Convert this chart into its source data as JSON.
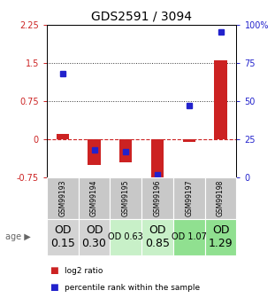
{
  "title": "GDS2591 / 3094",
  "samples": [
    "GSM99193",
    "GSM99194",
    "GSM99195",
    "GSM99196",
    "GSM99197",
    "GSM99198"
  ],
  "log2_ratio": [
    0.1,
    -0.5,
    -0.45,
    -0.85,
    -0.05,
    1.55
  ],
  "percentile_rank": [
    0.68,
    0.18,
    0.17,
    0.02,
    0.47,
    0.95
  ],
  "age_labels": [
    "OD\n0.15",
    "OD\n0.30",
    "OD 0.63",
    "OD\n0.85",
    "OD 1.07",
    "OD\n1.29"
  ],
  "age_bg_colors": [
    "#d3d3d3",
    "#d3d3d3",
    "#c8f0c8",
    "#c8f0c8",
    "#90e090",
    "#90e090"
  ],
  "age_font_sizes": [
    9,
    9,
    7,
    9,
    7,
    9
  ],
  "bar_color_red": "#cc2222",
  "bar_color_blue": "#2222cc",
  "left_yticks": [
    -0.75,
    0,
    0.75,
    1.5,
    2.25
  ],
  "right_yticks": [
    0,
    25,
    50,
    75,
    100
  ],
  "ylim_left": [
    -0.75,
    2.25
  ],
  "ylim_right": [
    0,
    100
  ],
  "hlines": [
    0.75,
    1.5
  ],
  "hline_zero_color": "#cc2222",
  "hline_dotted_color": "#333333",
  "tick_color_left": "#cc2222",
  "tick_color_right": "#2222cc",
  "legend_red": "log2 ratio",
  "legend_blue": "percentile rank within the sample",
  "bar_width": 0.4
}
